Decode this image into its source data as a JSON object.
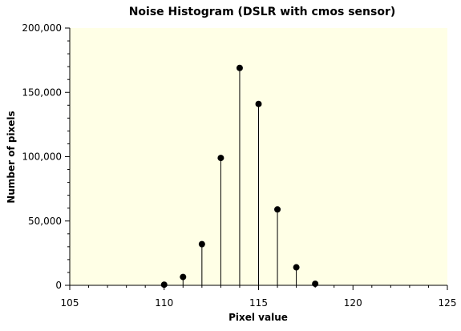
{
  "chart_data": {
    "type": "scatter",
    "style": "stem",
    "title": "Noise Histogram (DSLR with cmos sensor)",
    "xlabel": "Pixel value",
    "ylabel": "Number of pixels",
    "xlim": [
      105,
      125
    ],
    "ylim": [
      0,
      200000
    ],
    "grid": false,
    "legend": "none",
    "x_ticks": [
      105,
      110,
      115,
      120,
      125
    ],
    "x_tick_labels": [
      "105",
      "110",
      "115",
      "120",
      "125"
    ],
    "y_ticks": [
      0,
      50000,
      100000,
      150000,
      200000
    ],
    "y_tick_labels": [
      "0",
      "50,000",
      "100,000",
      "150,000",
      "200,000"
    ],
    "x": [
      110,
      111,
      112,
      113,
      114,
      115,
      116,
      117,
      118
    ],
    "y": [
      500,
      6500,
      32000,
      99000,
      169000,
      141000,
      59000,
      14000,
      1200
    ],
    "colors": {
      "plot_background": "#ffffe6",
      "marker": "#000000",
      "stem": "#000000"
    }
  }
}
